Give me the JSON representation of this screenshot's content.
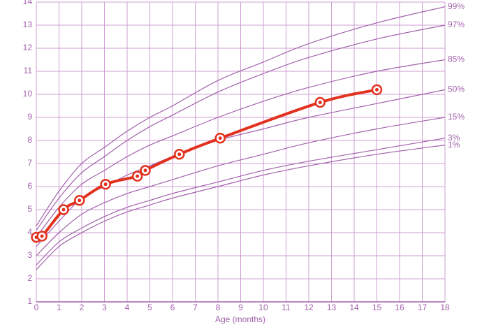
{
  "chart_data": {
    "type": "line",
    "x_label": "Age (months)",
    "xlim": [
      0,
      18
    ],
    "xticks": [
      0,
      1,
      2,
      3,
      4,
      5,
      6,
      7,
      8,
      9,
      10,
      11,
      12,
      13,
      14,
      15,
      16,
      17,
      18
    ],
    "ylim": [
      1,
      14
    ],
    "yticks": [
      1,
      2,
      3,
      4,
      5,
      6,
      7,
      8,
      9,
      10,
      11,
      12,
      13,
      14
    ],
    "grid": true,
    "x": [
      0,
      1,
      2,
      3,
      4,
      5,
      6,
      8,
      10,
      12,
      15,
      18
    ],
    "series": [
      {
        "name": "99%",
        "color": "#a262ab",
        "values": [
          4.3,
          5.8,
          7.0,
          7.7,
          8.4,
          9.0,
          9.5,
          10.6,
          11.4,
          12.2,
          13.1,
          13.8
        ]
      },
      {
        "name": "97%",
        "color": "#a262ab",
        "values": [
          4.1,
          5.5,
          6.6,
          7.3,
          8.0,
          8.6,
          9.1,
          10.1,
          10.9,
          11.6,
          12.4,
          13.0
        ]
      },
      {
        "name": "85%",
        "color": "#a262ab",
        "values": [
          3.8,
          5.1,
          6.1,
          6.7,
          7.3,
          7.8,
          8.2,
          9.0,
          9.7,
          10.3,
          11.0,
          11.5
        ]
      },
      {
        "name": "50%",
        "color": "#a262ab",
        "values": [
          3.4,
          4.5,
          5.5,
          6.0,
          6.5,
          6.9,
          7.3,
          8.0,
          8.5,
          9.0,
          9.6,
          10.2
        ]
      },
      {
        "name": "15%",
        "color": "#a262ab",
        "values": [
          3.0,
          4.0,
          4.8,
          5.3,
          5.7,
          6.0,
          6.3,
          6.9,
          7.4,
          7.9,
          8.5,
          9.0
        ]
      },
      {
        "name": "3%",
        "color": "#a262ab",
        "values": [
          2.6,
          3.6,
          4.2,
          4.7,
          5.1,
          5.4,
          5.7,
          6.2,
          6.7,
          7.1,
          7.6,
          8.1
        ]
      },
      {
        "name": "1%",
        "color": "#a262ab",
        "values": [
          2.4,
          3.4,
          4.0,
          4.5,
          4.9,
          5.2,
          5.5,
          6.0,
          6.5,
          6.9,
          7.4,
          7.8
        ]
      }
    ],
    "measurements": {
      "color": "#e2321f",
      "x": [
        0,
        0.25,
        1.2,
        1.9,
        3.05,
        4.45,
        4.8,
        6.3,
        8.1,
        12.5,
        15
      ],
      "values": [
        3.8,
        3.85,
        5.0,
        5.4,
        6.1,
        6.45,
        6.7,
        7.4,
        8.1,
        9.65,
        10.2
      ]
    }
  }
}
